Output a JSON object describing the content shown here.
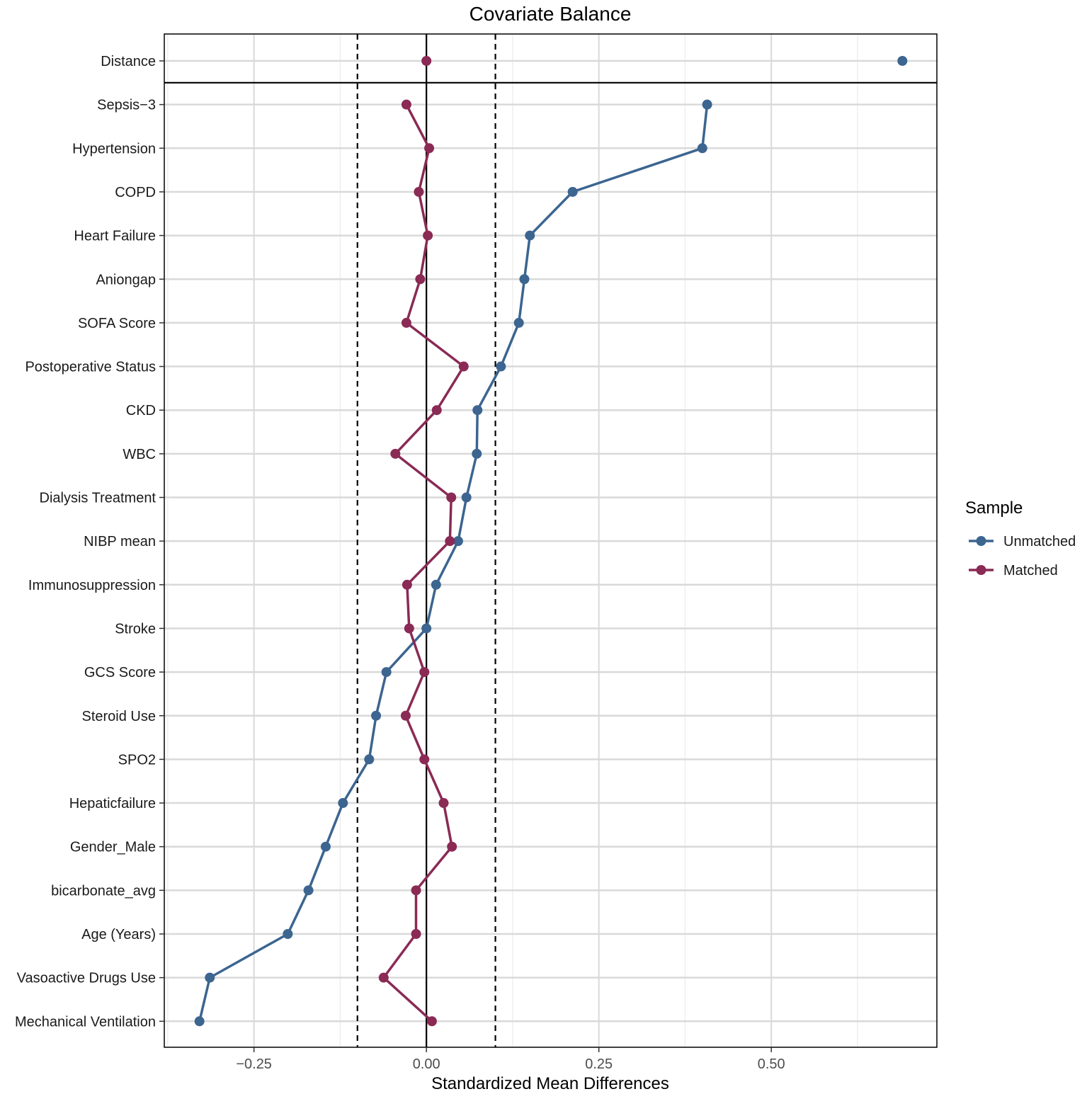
{
  "chart_data": {
    "type": "scatter",
    "title": "Covariate Balance",
    "xlabel": "Standardized Mean Differences",
    "ylabel": "",
    "xlim": [
      -0.38,
      0.74
    ],
    "x_ticks": [
      -0.25,
      0.0,
      0.25,
      0.5
    ],
    "x_tick_labels": [
      "−0.25",
      "0.00",
      "0.25",
      "0.50"
    ],
    "threshold_lines": [
      -0.1,
      0.1
    ],
    "zero_line": 0,
    "grid": true,
    "legend_position": "right",
    "legend_title": "Sample",
    "categories": [
      "Distance",
      "Sepsis−3",
      "Hypertension",
      "COPD",
      "Heart Failure",
      "Aniongap",
      "SOFA Score",
      "Postoperative Status",
      "CKD",
      "WBC",
      "Dialysis Treatment",
      "NIBP mean",
      "Immunosuppression",
      "Stroke",
      "GCS Score",
      "Steroid Use",
      "SPO2",
      "Hepaticfailure",
      "Gender_Male",
      "bicarbonate_avg",
      "Age (Years)",
      "Vasoactive Drugs Use",
      "Mechanical Ventilation"
    ],
    "series": [
      {
        "name": "Unmatched",
        "color": "#3c6590",
        "values": [
          0.69,
          0.407,
          0.4,
          0.212,
          0.15,
          0.142,
          0.134,
          0.108,
          0.074,
          0.073,
          0.058,
          0.046,
          0.014,
          0.0,
          -0.058,
          -0.073,
          -0.083,
          -0.121,
          -0.146,
          -0.171,
          -0.201,
          -0.314,
          -0.329
        ]
      },
      {
        "name": "Matched",
        "color": "#8a2a55",
        "values": [
          0.0,
          -0.029,
          0.004,
          -0.011,
          0.002,
          -0.009,
          -0.029,
          0.054,
          0.015,
          -0.045,
          0.036,
          0.034,
          -0.028,
          -0.025,
          -0.003,
          -0.03,
          -0.003,
          0.025,
          0.037,
          -0.015,
          -0.015,
          -0.062,
          0.008
        ]
      }
    ]
  }
}
